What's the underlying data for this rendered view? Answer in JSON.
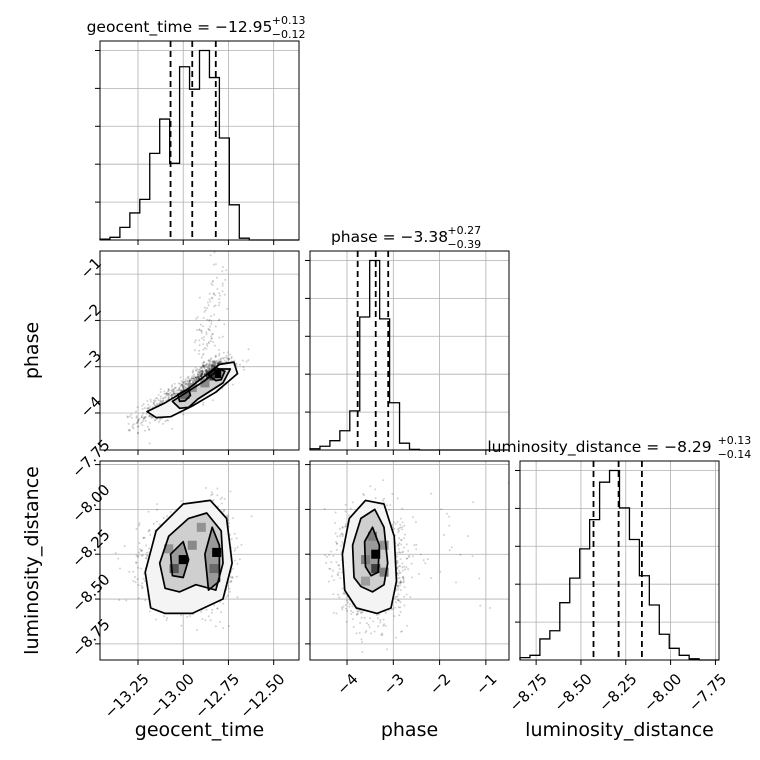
{
  "chart_data": {
    "type": "corner",
    "parameters": [
      "geocent_time",
      "phase",
      "luminosity_distance"
    ],
    "axes": {
      "geocent_time": {
        "label": "geocent_time",
        "range": [
          -13.46,
          -12.36
        ],
        "ticks": [
          -13.25,
          -13.0,
          -12.75,
          -12.5
        ],
        "tick_labels": [
          "−13.25",
          "−13.00",
          "−12.75",
          "−12.50"
        ]
      },
      "phase": {
        "label": "phase",
        "range": [
          -4.8,
          -0.5
        ],
        "ticks": [
          -4,
          -3,
          -2,
          -1
        ],
        "tick_labels": [
          "−4",
          "−3",
          "−2",
          "−1"
        ]
      },
      "luminosity_distance": {
        "label": "luminosity_distance",
        "range": [
          -8.84,
          -7.73
        ],
        "ticks": [
          -8.75,
          -8.5,
          -8.25,
          -8.0,
          -7.75
        ],
        "tick_labels": [
          "−8.75",
          "−8.50",
          "−8.25",
          "−8.00",
          "−7.75"
        ]
      }
    },
    "titles": [
      {
        "param": "geocent_time",
        "text": "geocent_time = −12.95",
        "sup": "+0.13",
        "sub": "−0.12"
      },
      {
        "param": "phase",
        "text": "phase = −3.38",
        "sup": "+0.27",
        "sub": "−0.39"
      },
      {
        "param": "luminosity_distance",
        "text": "luminosity_distance = −8.29",
        "sup": "+0.13",
        "sub": "−0.14"
      }
    ],
    "quantiles": {
      "geocent_time": [
        -13.07,
        -12.95,
        -12.82
      ],
      "phase": [
        -3.77,
        -3.38,
        -3.11
      ],
      "luminosity_distance": [
        -8.43,
        -8.29,
        -8.16
      ]
    },
    "histograms": {
      "geocent_time": {
        "edges": [
          -13.46,
          -13.405,
          -13.35,
          -13.295,
          -13.24,
          -13.185,
          -13.13,
          -13.075,
          -13.02,
          -12.965,
          -12.91,
          -12.855,
          -12.8,
          -12.745,
          -12.69,
          -12.635,
          -12.58,
          -12.525,
          -12.47,
          -12.415,
          -12.36
        ],
        "counts": [
          1,
          3,
          14,
          30,
          45,
          96,
          134,
          85,
          192,
          167,
          210,
          180,
          113,
          39,
          2,
          0,
          0,
          0,
          0,
          0
        ]
      },
      "phase": {
        "edges": [
          -4.8,
          -4.585,
          -4.37,
          -4.155,
          -3.94,
          -3.725,
          -3.51,
          -3.295,
          -3.08,
          -2.865,
          -2.65,
          -2.435,
          -2.22,
          -2.005,
          -1.79,
          -1.575,
          -1.36,
          -1.145,
          -0.93,
          -0.715,
          -0.5
        ],
        "counts": [
          2,
          6,
          15,
          31,
          63,
          214,
          305,
          211,
          76,
          11,
          1,
          0,
          0,
          0,
          0,
          0,
          0,
          0,
          0,
          0
        ]
      },
      "luminosity_distance": {
        "edges": [
          -8.84,
          -8.7845,
          -8.729,
          -8.6735,
          -8.618,
          -8.5625,
          -8.507,
          -8.4515,
          -8.396,
          -8.3405,
          -8.285,
          -8.2295,
          -8.174,
          -8.1185,
          -8.063,
          -8.0075,
          -7.952,
          -7.8965,
          -7.841,
          -7.7855,
          -7.73
        ],
        "counts": [
          2,
          4,
          18,
          25,
          49,
          70,
          95,
          120,
          152,
          162,
          130,
          103,
          72,
          47,
          22,
          10,
          4,
          1,
          0,
          0
        ]
      }
    },
    "density_2d": [
      {
        "x": "geocent_time",
        "y": "phase",
        "samples": [
          {
            "cx": -13.0,
            "cy": -3.6,
            "sx": 0.12,
            "sy": 0.3,
            "rho": 0.85,
            "n": 900
          },
          {
            "cx": -12.83,
            "cy": -3.12,
            "sx": 0.05,
            "sy": 0.15,
            "rho": 0.4,
            "n": 700
          },
          {
            "cx": -12.88,
            "cy": -2.3,
            "sx": 0.03,
            "sy": 0.4,
            "rho": 0.3,
            "n": 60
          },
          {
            "cx": -12.82,
            "cy": -1.4,
            "sx": 0.03,
            "sy": 0.5,
            "rho": 0.0,
            "n": 45
          }
        ],
        "contours": [
          [
            [
              -13.15,
              -4.1
            ],
            [
              -13.2,
              -3.97
            ],
            [
              -13.1,
              -3.78
            ],
            [
              -12.98,
              -3.5
            ],
            [
              -12.88,
              -3.2
            ],
            [
              -12.8,
              -2.95
            ],
            [
              -12.72,
              -2.9
            ],
            [
              -12.7,
              -3.15
            ],
            [
              -12.82,
              -3.55
            ],
            [
              -12.95,
              -3.85
            ],
            [
              -13.07,
              -4.08
            ]
          ],
          [
            [
              -13.02,
              -3.9
            ],
            [
              -13.06,
              -3.75
            ],
            [
              -12.98,
              -3.55
            ],
            [
              -12.88,
              -3.3
            ],
            [
              -12.8,
              -3.05
            ],
            [
              -12.74,
              -3.05
            ],
            [
              -12.78,
              -3.35
            ],
            [
              -12.92,
              -3.7
            ],
            [
              -12.97,
              -3.88
            ]
          ],
          [
            [
              -13.02,
              -3.75
            ],
            [
              -13.03,
              -3.6
            ],
            [
              -12.97,
              -3.48
            ],
            [
              -12.96,
              -3.62
            ],
            [
              -12.99,
              -3.74
            ]
          ],
          [
            [
              -12.82,
              -3.3
            ],
            [
              -12.86,
              -3.18
            ],
            [
              -12.82,
              -3.02
            ],
            [
              -12.77,
              -3.1
            ],
            [
              -12.79,
              -3.28
            ]
          ]
        ],
        "dense_cells": [
          [
            -12.815,
            -3.15,
            1.0
          ],
          [
            -12.85,
            -3.2,
            0.7
          ],
          [
            -12.99,
            -3.6,
            0.5
          ],
          [
            -12.88,
            -3.35,
            0.35
          ],
          [
            -12.95,
            -3.45,
            0.3
          ]
        ]
      },
      {
        "x": "geocent_time",
        "y": "luminosity_distance",
        "samples": [
          {
            "cx": -13.02,
            "cy": -8.3,
            "sx": 0.11,
            "sy": 0.12,
            "rho": 0.0,
            "n": 1100
          },
          {
            "cx": -12.83,
            "cy": -8.24,
            "sx": 0.05,
            "sy": 0.12,
            "rho": 0.0,
            "n": 900
          }
        ],
        "contours": [
          [
            [
              -13.18,
              -8.55
            ],
            [
              -13.21,
              -8.35
            ],
            [
              -13.15,
              -8.12
            ],
            [
              -13.0,
              -7.97
            ],
            [
              -12.85,
              -7.95
            ],
            [
              -12.76,
              -8.05
            ],
            [
              -12.73,
              -8.3
            ],
            [
              -12.78,
              -8.5
            ],
            [
              -12.95,
              -8.58
            ],
            [
              -13.1,
              -8.58
            ]
          ],
          [
            [
              -13.1,
              -8.44
            ],
            [
              -13.13,
              -8.3
            ],
            [
              -13.08,
              -8.15
            ],
            [
              -12.97,
              -8.05
            ],
            [
              -12.87,
              -8.02
            ],
            [
              -12.79,
              -8.12
            ],
            [
              -12.78,
              -8.3
            ],
            [
              -12.82,
              -8.45
            ],
            [
              -12.93,
              -8.42
            ],
            [
              -13.02,
              -8.46
            ]
          ],
          [
            [
              -13.06,
              -8.37
            ],
            [
              -13.07,
              -8.25
            ],
            [
              -13.0,
              -8.18
            ],
            [
              -12.97,
              -8.28
            ],
            [
              -13.0,
              -8.38
            ]
          ],
          [
            [
              -12.86,
              -8.45
            ],
            [
              -12.88,
              -8.25
            ],
            [
              -12.84,
              -8.1
            ],
            [
              -12.8,
              -8.2
            ],
            [
              -12.8,
              -8.4
            ]
          ]
        ],
        "dense_cells": [
          [
            -13.0,
            -8.28,
            1.0
          ],
          [
            -12.815,
            -8.24,
            1.0
          ],
          [
            -13.05,
            -8.33,
            0.6
          ],
          [
            -12.83,
            -8.33,
            0.5
          ],
          [
            -12.95,
            -8.2,
            0.35
          ],
          [
            -12.9,
            -8.1,
            0.3
          ],
          [
            -13.08,
            -8.22,
            0.3
          ]
        ]
      },
      {
        "x": "phase",
        "y": "luminosity_distance",
        "samples": [
          {
            "cx": -3.45,
            "cy": -8.3,
            "sx": 0.32,
            "sy": 0.14,
            "rho": 0.0,
            "n": 1900
          },
          {
            "cx": -1.8,
            "cy": -8.2,
            "sx": 0.6,
            "sy": 0.2,
            "rho": 0.0,
            "n": 25
          }
        ],
        "contours": [
          [
            [
              -4.05,
              -8.45
            ],
            [
              -4.1,
              -8.25
            ],
            [
              -3.95,
              -8.05
            ],
            [
              -3.6,
              -7.95
            ],
            [
              -3.2,
              -7.97
            ],
            [
              -2.98,
              -8.15
            ],
            [
              -2.93,
              -8.4
            ],
            [
              -3.05,
              -8.55
            ],
            [
              -3.35,
              -8.58
            ],
            [
              -3.8,
              -8.55
            ]
          ],
          [
            [
              -3.85,
              -8.38
            ],
            [
              -3.88,
              -8.2
            ],
            [
              -3.7,
              -8.05
            ],
            [
              -3.4,
              -8.0
            ],
            [
              -3.2,
              -8.1
            ],
            [
              -3.12,
              -8.3
            ],
            [
              -3.2,
              -8.42
            ],
            [
              -3.45,
              -8.46
            ],
            [
              -3.7,
              -8.43
            ]
          ],
          [
            [
              -3.6,
              -8.32
            ],
            [
              -3.62,
              -8.18
            ],
            [
              -3.45,
              -8.1
            ],
            [
              -3.3,
              -8.2
            ],
            [
              -3.33,
              -8.35
            ],
            [
              -3.48,
              -8.37
            ]
          ]
        ],
        "dense_cells": [
          [
            -3.38,
            -8.25,
            1.0
          ],
          [
            -3.38,
            -8.33,
            0.7
          ],
          [
            -3.6,
            -8.28,
            0.4
          ],
          [
            -3.2,
            -8.35,
            0.4
          ],
          [
            -3.45,
            -8.15,
            0.4
          ],
          [
            -3.6,
            -8.4,
            0.25
          ],
          [
            -3.2,
            -8.2,
            0.3
          ]
        ]
      }
    ]
  }
}
